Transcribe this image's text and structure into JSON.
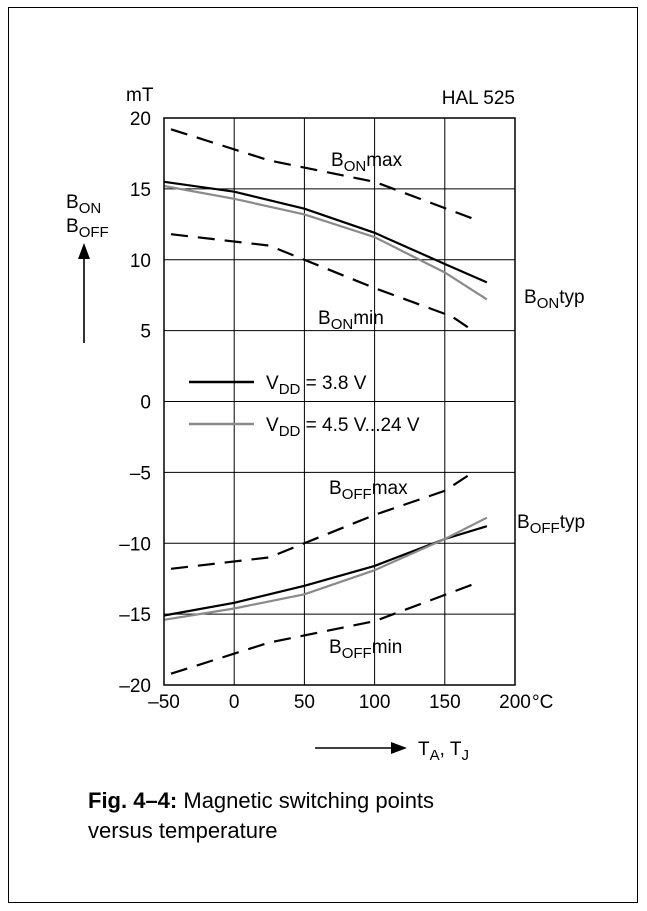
{
  "chart_data": {
    "type": "line",
    "title": "HAL 525",
    "ylabel_lines": [
      "B_ON",
      "B_OFF"
    ],
    "y_unit": "mT",
    "x_unit": "°C",
    "xlabel": "T_A, T_J",
    "xlim": [
      -50,
      200
    ],
    "ylim": [
      -20,
      20
    ],
    "x_ticks": [
      -50,
      0,
      50,
      100,
      150,
      200
    ],
    "y_ticks": [
      20,
      15,
      10,
      5,
      0,
      -5,
      -10,
      -15,
      -20
    ],
    "x_tick_labels": [
      "–50",
      "0",
      "50",
      "100",
      "150",
      "200"
    ],
    "y_tick_labels": [
      "20",
      "15",
      "10",
      "5",
      "0",
      "–5",
      "–10",
      "–15",
      "–20"
    ],
    "grid": true,
    "legend": [
      {
        "label_main": "V",
        "label_sub": "DD",
        "label_rest": " = 3.8 V",
        "color": "#000000"
      },
      {
        "label_main": "V",
        "label_sub": "DD",
        "label_rest": " = 4.5 V...24 V",
        "color": "#8a8a8a"
      }
    ],
    "series": [
      {
        "name": "B_ON max",
        "label_main": "B",
        "label_sub": "ON",
        "label_rest": "max",
        "style": "dashed",
        "color": "#000000",
        "x": [
          -45,
          25,
          100,
          170
        ],
        "y": [
          19.2,
          17.0,
          15.5,
          12.9
        ]
      },
      {
        "name": "B_ON typ (V_DD = 3.8 V)",
        "label_main": "B",
        "label_sub": "ON",
        "label_rest": "typ",
        "style": "solid",
        "color": "#000000",
        "x": [
          -50,
          0,
          50,
          100,
          150,
          180
        ],
        "y": [
          15.5,
          14.8,
          13.6,
          11.9,
          9.7,
          8.4
        ]
      },
      {
        "name": "B_ON typ (V_DD = 4.5 V...24 V)",
        "style": "solid",
        "color": "#8a8a8a",
        "x": [
          -50,
          0,
          50,
          100,
          150,
          180
        ],
        "y": [
          15.2,
          14.3,
          13.2,
          11.6,
          9.1,
          7.2
        ]
      },
      {
        "name": "B_ON min",
        "label_main": "B",
        "label_sub": "ON",
        "label_rest": "min",
        "style": "dashed",
        "color": "#000000",
        "x": [
          -45,
          25,
          100,
          155,
          170
        ],
        "y": [
          11.8,
          11.0,
          8.0,
          6.0,
          5.0
        ]
      },
      {
        "name": "B_OFF max",
        "label_main": "B",
        "label_sub": "OFF",
        "label_rest": "max",
        "style": "dashed",
        "color": "#000000",
        "x": [
          -45,
          25,
          100,
          150,
          170
        ],
        "y": [
          -11.8,
          -11.0,
          -8.0,
          -6.3,
          -5.0
        ]
      },
      {
        "name": "B_OFF typ (V_DD = 3.8 V)",
        "label_main": "B",
        "label_sub": "OFF",
        "label_rest": "typ",
        "style": "solid",
        "color": "#000000",
        "x": [
          -50,
          0,
          50,
          100,
          150,
          180
        ],
        "y": [
          -15.1,
          -14.2,
          -13.0,
          -11.6,
          -9.7,
          -8.8
        ]
      },
      {
        "name": "B_OFF typ (V_DD = 4.5 V...24 V)",
        "style": "solid",
        "color": "#8a8a8a",
        "x": [
          -50,
          0,
          50,
          100,
          150,
          180
        ],
        "y": [
          -15.4,
          -14.6,
          -13.6,
          -11.9,
          -9.7,
          -8.2
        ]
      },
      {
        "name": "B_OFF min",
        "label_main": "B",
        "label_sub": "OFF",
        "label_rest": "min",
        "style": "dashed",
        "color": "#000000",
        "x": [
          -45,
          25,
          100,
          170
        ],
        "y": [
          -19.2,
          -17.0,
          -15.5,
          -12.9
        ]
      }
    ]
  },
  "caption": {
    "label": "Fig. 4–4:",
    "text_line1": " Magnetic switching points",
    "text_line2": "versus temperature"
  }
}
